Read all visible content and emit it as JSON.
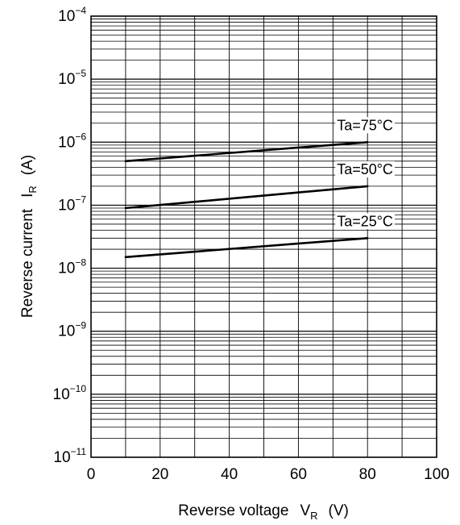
{
  "chart_data": {
    "type": "line",
    "xlabel": {
      "main": "Reverse voltage",
      "symbol": "V",
      "subscript": "R",
      "unit": "(V)"
    },
    "ylabel": {
      "main": "Reverse current",
      "symbol": "I",
      "subscript": "R",
      "unit": "(A)"
    },
    "xlim": [
      0,
      100
    ],
    "ylim": [
      1e-11,
      0.0001
    ],
    "yscale": "log",
    "grid": true,
    "x_ticks": [
      "0",
      "20",
      "40",
      "60",
      "80",
      "100"
    ],
    "y_ticks": [
      {
        "base": "10",
        "exp": "−4",
        "value": 0.0001
      },
      {
        "base": "10",
        "exp": "−5",
        "value": 1e-05
      },
      {
        "base": "10",
        "exp": "−6",
        "value": 1e-06
      },
      {
        "base": "10",
        "exp": "−7",
        "value": 1e-07
      },
      {
        "base": "10",
        "exp": "−8",
        "value": 1e-08
      },
      {
        "base": "10",
        "exp": "−9",
        "value": 1e-09
      },
      {
        "base": "10",
        "exp": "−10",
        "value": 1e-10
      },
      {
        "base": "10",
        "exp": "−11",
        "value": 1e-11
      }
    ],
    "series": [
      {
        "name": "Ta=75°C",
        "x": [
          10,
          80
        ],
        "y": [
          5e-07,
          1e-06
        ]
      },
      {
        "name": "Ta=50°C",
        "x": [
          10,
          80
        ],
        "y": [
          9e-08,
          2e-07
        ]
      },
      {
        "name": "Ta=25°C",
        "x": [
          10,
          80
        ],
        "y": [
          1.5e-08,
          3e-08
        ]
      }
    ]
  }
}
